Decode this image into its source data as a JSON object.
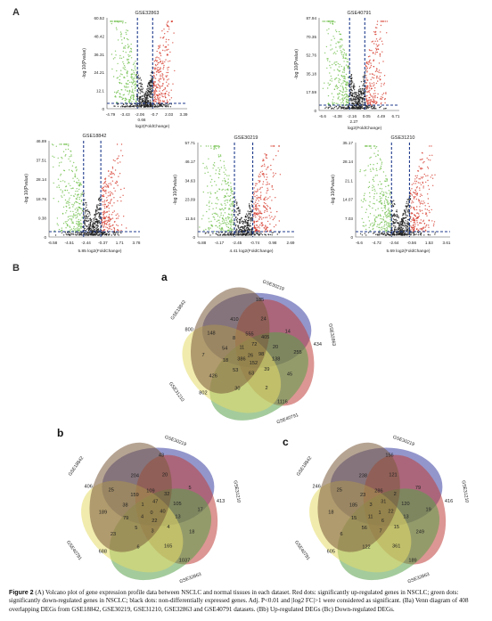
{
  "panel_labels": {
    "A": "A",
    "B": "B",
    "a": "a",
    "b": "b",
    "c": "c"
  },
  "volcano": {
    "ylabel": "-log 10(Pvalue)",
    "colors": {
      "up": "#d63a2c",
      "down": "#6fbf4a",
      "none": "#1c1c1c",
      "threshold": "#1f3b8c"
    },
    "plots": [
      {
        "title": "GSE32863",
        "yticks": [
          "60.52",
          "48.42",
          "36.31",
          "24.21",
          "12.1",
          "0"
        ],
        "xticks": [
          "-4.79",
          "-3.43",
          "-2.06",
          "-0.7",
          "2.03",
          "3.39"
        ],
        "extra_tick": "0.66",
        "xlabel": "log2(FoldChange)"
      },
      {
        "title": "GSE40791",
        "yticks": [
          "87.94",
          "70.35",
          "52.76",
          "35.18",
          "17.59",
          "0"
        ],
        "xticks": [
          "-6.6",
          "-4.38",
          "-2.16",
          "0.05",
          "4.49",
          "6.71"
        ],
        "extra_tick": "2.27",
        "xlabel": "log2(FoldChange)"
      },
      {
        "title": "GSE18842",
        "yticks": [
          "46.89",
          "37.51",
          "28.14",
          "18.76",
          "9.38",
          "0"
        ],
        "xticks": [
          "-6.58",
          "-4.51",
          "-2.44",
          "-0.37",
          "1.71",
          "3.78"
        ],
        "extra_tick": "",
        "xlabel": "5.85 log2(FoldChange)"
      },
      {
        "title": "GSE30219",
        "yticks": [
          "57.71",
          "46.17",
          "34.63",
          "23.09",
          "11.54",
          "0"
        ],
        "xticks": [
          "-5.88",
          "-4.17",
          "-2.45",
          "-0.74",
          "0.98",
          "2.69"
        ],
        "extra_tick": "",
        "xlabel": "4.41 log2(FoldChange)"
      },
      {
        "title": "GSE31210",
        "yticks": [
          "35.17",
          "28.14",
          "21.1",
          "14.07",
          "7.03",
          "0"
        ],
        "xticks": [
          "-6.6",
          "-4.72",
          "-2.64",
          "-0.56",
          "1.53",
          "3.61"
        ],
        "extra_tick": "",
        "xlabel": "5.69 log2(FoldChange)"
      }
    ]
  },
  "venn": {
    "colors": [
      "#3a3fa0",
      "#c0403a",
      "#5aa04a",
      "#e6dc6a",
      "#7a5a3a"
    ],
    "diagrams": [
      {
        "set_labels": [
          "GSE18842",
          "GSE30219",
          "GSE32863",
          "GSE40791",
          "GSE31210"
        ],
        "numbers": [
          "800",
          "185",
          "434",
          "1116",
          "802",
          "410",
          "24",
          "14",
          "255",
          "45",
          "2",
          "30",
          "426",
          "7",
          "148",
          "555",
          "405",
          "20",
          "138",
          "39",
          "63",
          "53",
          "18",
          "54",
          "8",
          "72",
          "98",
          "152",
          "386",
          "11",
          "26"
        ]
      },
      {
        "set_labels": [
          "GSE18842",
          "GSE30219",
          "GSE31210",
          "GSE32863",
          "GSE40791"
        ],
        "numbers": [
          "406",
          "43",
          "413",
          "1037",
          "688",
          "204",
          "20",
          "5",
          "17",
          "18",
          "165",
          "6",
          "23",
          "189",
          "25",
          "109",
          "32",
          "105",
          "13",
          "4",
          "3",
          "5",
          "79",
          "38",
          "159",
          "47",
          "40",
          "22",
          "4",
          "1",
          "0"
        ]
      },
      {
        "set_labels": [
          "GSE18842",
          "GSE30219",
          "GSE31210",
          "GSE32863",
          "GSE40791"
        ],
        "numbers": [
          "246",
          "156",
          "416",
          "189",
          "605",
          "238",
          "121",
          "79",
          "19",
          "249",
          "361",
          "122",
          "6",
          "18",
          "25",
          "286",
          "2",
          "120",
          "13",
          "15",
          "7",
          "56",
          "15",
          "185",
          "23",
          "31",
          "22",
          "6",
          "11",
          "3",
          "1"
        ]
      }
    ]
  },
  "caption": {
    "fig": "Figure 2",
    "text": " (A) Volcano plot of gene expression profile data between NSCLC and normal tissues in each dataset. Red dots: significantly up-regulated genes in NSCLC; green dots: significantly down-regulated genes in NSCLC; black dots: non-differentially expressed genes. Adj. P<0.01 and |log2 FC|>1 were considered as significant. (Ba) Venn diagram of 408 overlapping DEGs from GSE18842, GSE30219, GSE31210, GSE32863 and GSE40791 datasets. (Bb) Up-regulated DEGs (Bc) Down-regulated DEGs."
  }
}
